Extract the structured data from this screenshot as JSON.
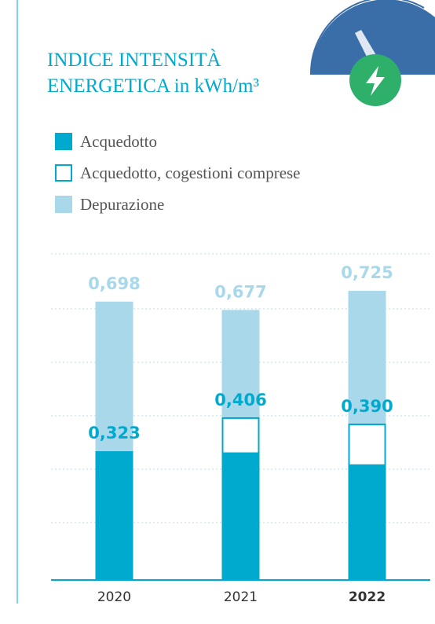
{
  "chart_data": {
    "type": "bar",
    "title": "INDICE INTENSITÀ ENERGETICA in kWh/m³",
    "categories": [
      "2020",
      "2021",
      "2022"
    ],
    "bold_index": 2,
    "ylim": [
      0,
      0.8
    ],
    "series": [
      {
        "name": "Acquedotto",
        "color": "#00a9ce",
        "values": [
          0.323,
          0.32,
          0.29
        ],
        "value_labels": [
          "0,323",
          null,
          null
        ]
      },
      {
        "name": "Acquedotto, cogestioni comprese",
        "color": "#00a9ce",
        "fill": "#ffffff",
        "values": [
          null,
          0.406,
          0.39
        ],
        "value_labels": [
          null,
          "0,406",
          "0,390"
        ]
      },
      {
        "name": "Depurazione",
        "color": "#a8d8ea",
        "values": [
          0.698,
          0.677,
          0.725
        ],
        "value_labels": [
          "0,698",
          "0,677",
          "0,725"
        ]
      }
    ]
  }
}
